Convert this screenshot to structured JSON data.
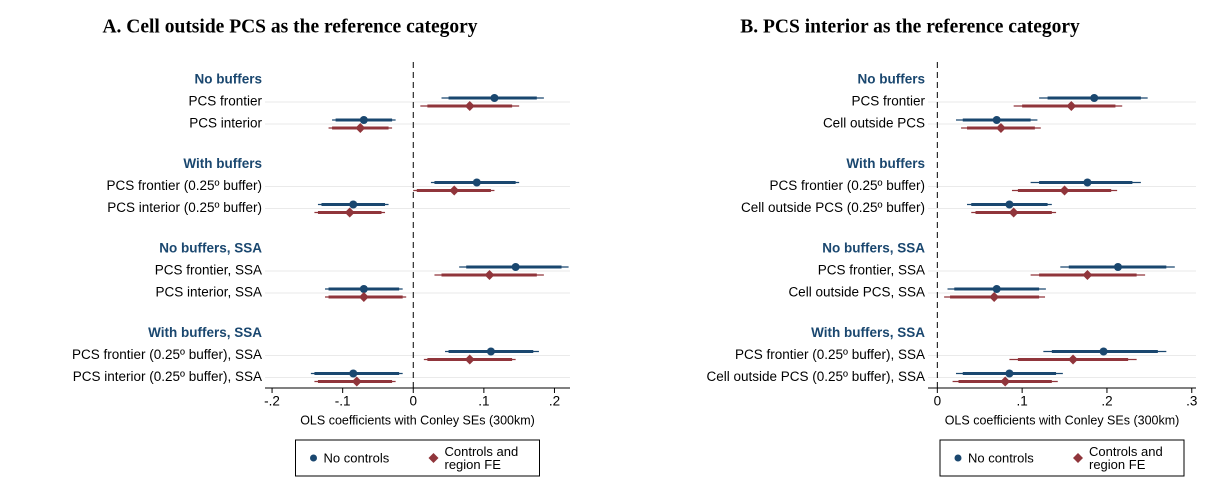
{
  "chart_data": [
    {
      "type": "coefplot",
      "title": "A. Cell outside PCS as the reference category",
      "xlabel": "OLS coefficients with Conley SEs (300km)",
      "groups": [
        "No buffers",
        "With buffers",
        "No buffers, SSA",
        "With buffers, SSA"
      ],
      "categories": [
        "PCS frontier",
        "PCS interior",
        "PCS frontier (0.25º buffer)",
        "PCS interior (0.25º buffer)",
        "PCS frontier, SSA",
        "PCS interior, SSA",
        "PCS frontier (0.25º buffer), SSA",
        "PCS interior (0.25º buffer), SSA"
      ],
      "series": [
        {
          "name": "No controls",
          "color": "#1a476f",
          "values": [
            0.115,
            -0.07,
            0.09,
            -0.085,
            0.145,
            -0.07,
            0.11,
            -0.085
          ],
          "ci_inner_low": [
            0.05,
            -0.11,
            0.03,
            -0.13,
            0.075,
            -0.12,
            0.05,
            -0.14
          ],
          "ci_inner_high": [
            0.175,
            -0.03,
            0.145,
            -0.04,
            0.21,
            -0.02,
            0.17,
            -0.02
          ],
          "ci_outer_low": [
            0.04,
            -0.115,
            0.025,
            -0.135,
            0.065,
            -0.125,
            0.045,
            -0.145
          ],
          "ci_outer_high": [
            0.185,
            -0.025,
            0.15,
            -0.035,
            0.22,
            -0.015,
            0.178,
            -0.015
          ]
        },
        {
          "name": "Controls and region FE",
          "color": "#90353b",
          "values": [
            0.08,
            -0.075,
            0.058,
            -0.09,
            0.108,
            -0.07,
            0.08,
            -0.08
          ],
          "ci_inner_low": [
            0.02,
            -0.115,
            0.005,
            -0.135,
            0.04,
            -0.12,
            0.02,
            -0.135
          ],
          "ci_inner_high": [
            0.14,
            -0.035,
            0.11,
            -0.045,
            0.175,
            -0.015,
            0.14,
            -0.03
          ],
          "ci_outer_low": [
            0.01,
            -0.12,
            0.0,
            -0.14,
            0.03,
            -0.125,
            0.015,
            -0.14
          ],
          "ci_outer_high": [
            0.15,
            -0.03,
            0.115,
            -0.04,
            0.185,
            -0.01,
            0.145,
            -0.025
          ]
        }
      ],
      "xlim": [
        -0.21,
        0.222
      ],
      "xticks": [
        {
          "value": -0.2,
          "label": "-.2"
        },
        {
          "value": -0.1,
          "label": "-.1"
        },
        0,
        {
          "value": 0.1,
          "label": ".1"
        },
        {
          "value": 0.2,
          "label": ".2"
        }
      ],
      "xline": 0,
      "grid": true,
      "legend": "bottom"
    },
    {
      "type": "coefplot",
      "title": "B. PCS interior as the reference category",
      "xlabel": "OLS coefficients with Conley SEs (300km)",
      "groups": [
        "No buffers",
        "With buffers",
        "No buffers, SSA",
        "With buffers, SSA"
      ],
      "categories": [
        "PCS frontier",
        "Cell outside PCS",
        "PCS frontier (0.25º buffer)",
        "Cell outside PCS (0.25º buffer)",
        "PCS frontier, SSA",
        "Cell outside PCS, SSA",
        "PCS frontier (0.25º buffer), SSA",
        "Cell outside PCS (0.25º buffer), SSA"
      ],
      "series": [
        {
          "name": "No controls",
          "color": "#1a476f",
          "values": [
            0.185,
            0.07,
            0.177,
            0.085,
            0.213,
            0.07,
            0.196,
            0.085
          ],
          "ci_inner_low": [
            0.13,
            0.03,
            0.12,
            0.04,
            0.155,
            0.02,
            0.135,
            0.03
          ],
          "ci_inner_high": [
            0.24,
            0.11,
            0.23,
            0.13,
            0.27,
            0.12,
            0.26,
            0.14
          ],
          "ci_outer_low": [
            0.12,
            0.022,
            0.11,
            0.035,
            0.145,
            0.012,
            0.125,
            0.022
          ],
          "ci_outer_high": [
            0.248,
            0.118,
            0.24,
            0.135,
            0.28,
            0.128,
            0.27,
            0.148
          ]
        },
        {
          "name": "Controls and region FE",
          "color": "#90353b",
          "values": [
            0.158,
            0.075,
            0.15,
            0.09,
            0.177,
            0.067,
            0.16,
            0.08
          ],
          "ci_inner_low": [
            0.1,
            0.035,
            0.095,
            0.045,
            0.12,
            0.015,
            0.095,
            0.025
          ],
          "ci_inner_high": [
            0.21,
            0.115,
            0.205,
            0.135,
            0.235,
            0.12,
            0.225,
            0.135
          ],
          "ci_outer_low": [
            0.09,
            0.028,
            0.088,
            0.04,
            0.11,
            0.008,
            0.085,
            0.018
          ],
          "ci_outer_high": [
            0.218,
            0.122,
            0.212,
            0.14,
            0.245,
            0.127,
            0.235,
            0.142
          ]
        }
      ],
      "xlim": [
        -0.011,
        0.305
      ],
      "xticks": [
        0,
        {
          "value": 0.1,
          "label": ".1"
        },
        {
          "value": 0.2,
          "label": ".2"
        },
        {
          "value": 0.3,
          "label": ".3"
        }
      ],
      "xline": 0,
      "grid": true,
      "legend": "bottom"
    }
  ]
}
